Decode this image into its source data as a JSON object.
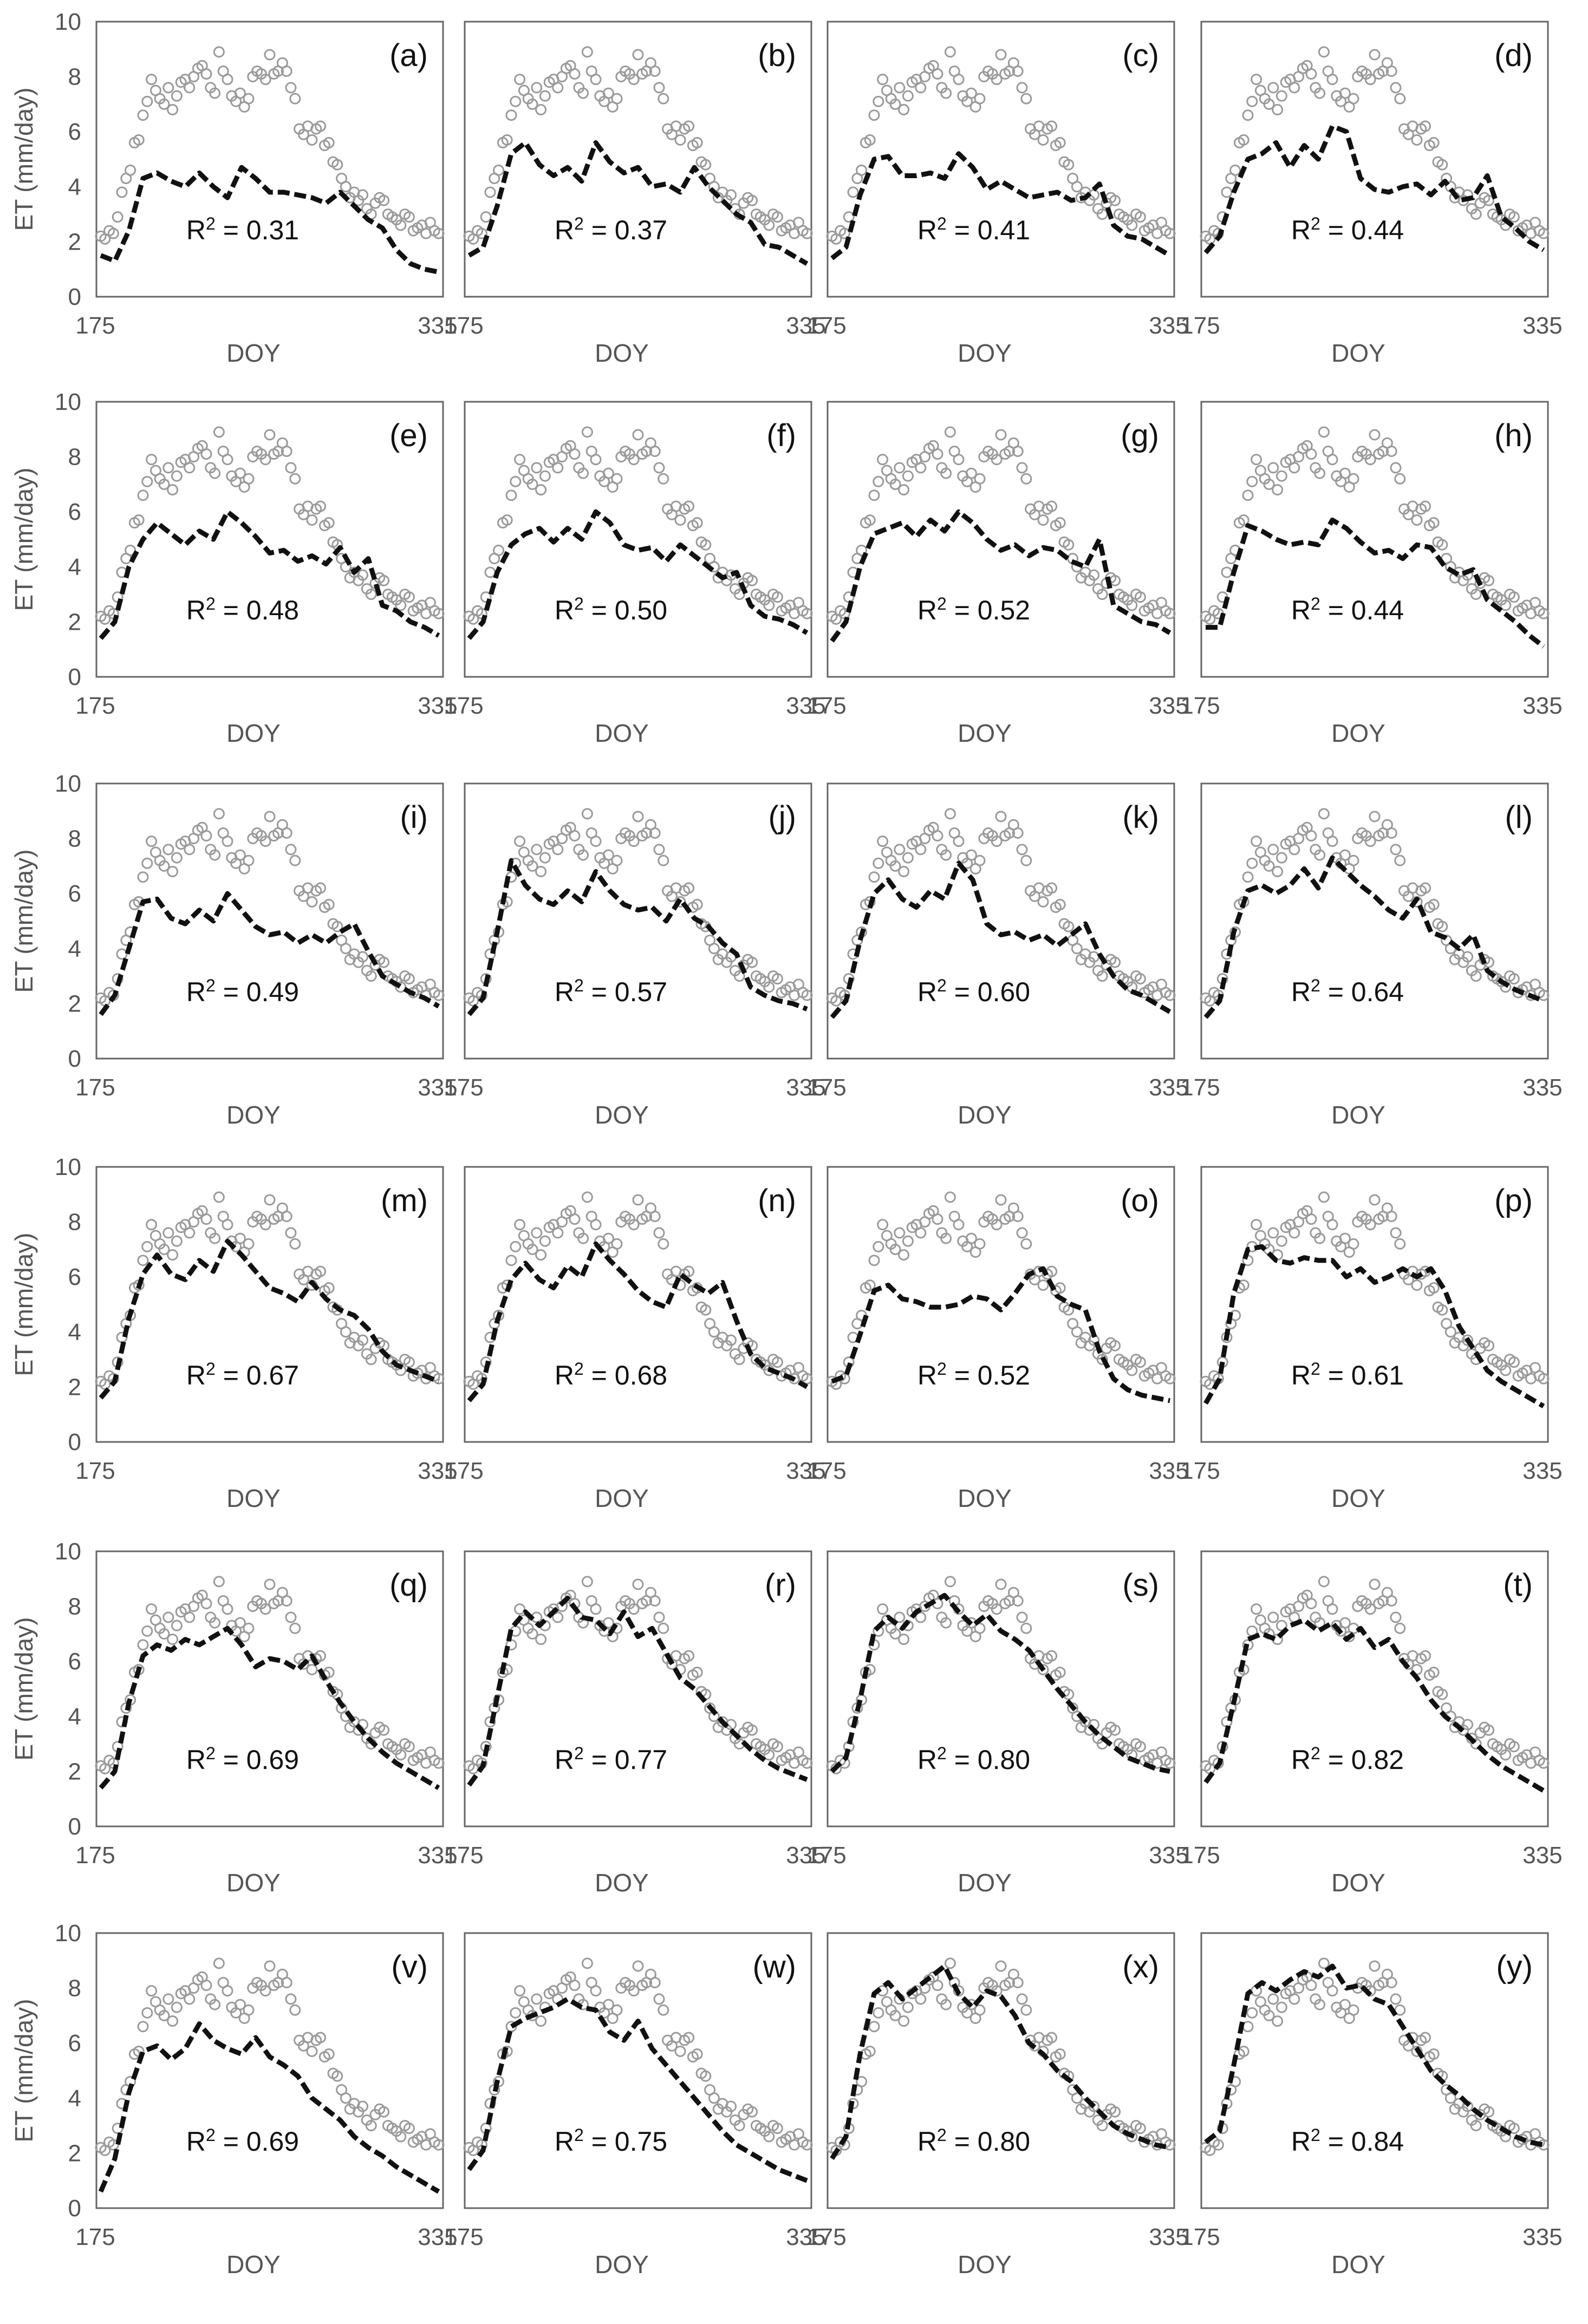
{
  "chart_data": {
    "type": "scatter",
    "description_free": true,
    "shared": {
      "xlabel": "DOY",
      "ylabel": "ET (mm/day)",
      "x_range": [
        175,
        335
      ],
      "y_range": [
        0,
        10
      ],
      "y_ticks": [
        0,
        2,
        4,
        6,
        8,
        10
      ],
      "x_tick_labels": [
        "175",
        "335"
      ],
      "r2_prefix": "R",
      "r2_exponent": "2",
      "colors": {
        "simulated": "#111111",
        "observed": "#9a9a9a",
        "frame": "#666666"
      }
    },
    "observed": {
      "name": "Observed ET (circles)",
      "doy": [
        175,
        177,
        179,
        181,
        183,
        185,
        187,
        189,
        191,
        193,
        195,
        197,
        199,
        201,
        203,
        205,
        207,
        209,
        211,
        213,
        215,
        217,
        219,
        221,
        223,
        225,
        227,
        229,
        231,
        233,
        235,
        237,
        239,
        241,
        243,
        245,
        247,
        249,
        251,
        253,
        255,
        257,
        259,
        261,
        263,
        265,
        267,
        269,
        271,
        273,
        275,
        277,
        279,
        281,
        283,
        285,
        287,
        289,
        291,
        293,
        295,
        297,
        299,
        301,
        303,
        305,
        307,
        309,
        311,
        313,
        315,
        317,
        319,
        321,
        323,
        325,
        327,
        329,
        331,
        333,
        335
      ],
      "et": [
        2.2,
        2.1,
        2.4,
        2.3,
        2.9,
        3.8,
        4.3,
        4.6,
        5.6,
        5.7,
        6.6,
        7.1,
        7.9,
        7.5,
        7.2,
        7.0,
        7.6,
        6.8,
        7.3,
        7.8,
        7.9,
        7.6,
        8.0,
        8.3,
        8.4,
        8.1,
        7.6,
        7.4,
        8.9,
        8.2,
        7.9,
        7.3,
        7.1,
        7.4,
        6.9,
        7.2,
        8.0,
        8.2,
        8.1,
        7.9,
        8.8,
        8.1,
        8.2,
        8.5,
        8.2,
        7.6,
        7.2,
        6.1,
        5.9,
        6.2,
        5.7,
        6.1,
        6.2,
        5.5,
        5.6,
        4.9,
        4.8,
        4.3,
        4.0,
        3.6,
        3.8,
        3.5,
        3.7,
        3.2,
        3.0,
        3.4,
        3.6,
        3.5,
        3.0,
        2.9,
        2.8,
        2.6,
        3.0,
        2.9,
        2.4,
        2.5,
        2.6,
        2.3,
        2.7,
        2.4,
        2.3
      ]
    },
    "panels": [
      {
        "id": "a",
        "label": "(a)",
        "r2": "0.31",
        "sim": [
          1.5,
          1.3,
          2.4,
          4.3,
          4.5,
          4.2,
          4.0,
          4.5,
          4.0,
          3.6,
          4.7,
          4.3,
          3.8,
          3.8,
          3.7,
          3.6,
          3.4,
          3.8,
          3.3,
          2.8,
          2.5,
          1.7,
          1.2,
          1.0,
          0.9
        ]
      },
      {
        "id": "b",
        "label": "(b)",
        "r2": "0.37",
        "sim": [
          1.5,
          1.8,
          3.3,
          5.2,
          5.6,
          4.8,
          4.4,
          4.7,
          4.2,
          5.6,
          4.9,
          4.5,
          4.7,
          4.0,
          4.1,
          3.8,
          4.7,
          4.0,
          3.5,
          3.0,
          2.7,
          1.9,
          1.8,
          1.5,
          1.2
        ]
      },
      {
        "id": "c",
        "label": "(c)",
        "r2": "0.41",
        "sim": [
          1.4,
          1.8,
          3.7,
          5.0,
          5.1,
          4.4,
          4.4,
          4.5,
          4.3,
          5.2,
          4.7,
          3.9,
          4.2,
          3.9,
          3.6,
          3.7,
          3.8,
          3.5,
          3.6,
          4.1,
          2.6,
          2.2,
          2.1,
          1.8,
          1.5
        ]
      },
      {
        "id": "d",
        "label": "(d)",
        "r2": "0.44",
        "sim": [
          1.6,
          2.2,
          3.8,
          5.0,
          5.2,
          5.6,
          4.7,
          5.5,
          5.0,
          6.2,
          6.0,
          4.3,
          3.9,
          3.8,
          4.0,
          4.1,
          3.7,
          4.2,
          3.5,
          3.6,
          4.4,
          2.9,
          2.5,
          2.0,
          1.7
        ]
      },
      {
        "id": "e",
        "label": "(e)",
        "r2": "0.48",
        "sim": [
          1.4,
          2.0,
          4.0,
          5.0,
          5.6,
          5.2,
          4.8,
          5.3,
          5.0,
          6.0,
          5.6,
          5.1,
          4.5,
          4.6,
          4.2,
          4.4,
          4.1,
          4.7,
          3.8,
          4.3,
          2.6,
          2.4,
          2.0,
          1.8,
          1.5
        ]
      },
      {
        "id": "f",
        "label": "(f)",
        "r2": "0.50",
        "sim": [
          1.4,
          2.0,
          3.8,
          4.8,
          5.2,
          5.4,
          4.9,
          5.4,
          5.0,
          6.0,
          5.6,
          4.8,
          4.6,
          4.7,
          4.2,
          4.8,
          4.4,
          4.0,
          3.6,
          3.8,
          2.6,
          2.2,
          2.1,
          1.9,
          1.6
        ]
      },
      {
        "id": "g",
        "label": "(g)",
        "r2": "0.52",
        "sim": [
          1.3,
          2.0,
          4.0,
          5.2,
          5.4,
          5.6,
          5.1,
          5.7,
          5.3,
          6.0,
          5.6,
          5.0,
          4.6,
          4.8,
          4.4,
          4.7,
          4.6,
          4.2,
          4.0,
          5.0,
          2.6,
          2.3,
          2.0,
          1.9,
          1.6
        ]
      },
      {
        "id": "h",
        "label": "(h)",
        "r2": "0.44",
        "sim": [
          1.8,
          1.8,
          3.8,
          5.5,
          5.3,
          5.0,
          4.8,
          4.9,
          4.8,
          5.7,
          5.4,
          4.9,
          4.5,
          4.6,
          4.3,
          4.8,
          4.7,
          4.0,
          3.7,
          3.9,
          2.8,
          2.4,
          2.0,
          1.5,
          1.1
        ]
      },
      {
        "id": "i",
        "label": "(i)",
        "r2": "0.49",
        "sim": [
          1.6,
          2.3,
          4.0,
          5.7,
          5.8,
          5.1,
          4.9,
          5.4,
          5.0,
          6.0,
          5.4,
          4.8,
          4.5,
          4.6,
          4.2,
          4.5,
          4.2,
          4.6,
          4.9,
          3.9,
          3.0,
          2.7,
          2.4,
          2.2,
          1.9
        ]
      },
      {
        "id": "j",
        "label": "(j)",
        "r2": "0.57",
        "sim": [
          1.6,
          2.2,
          4.6,
          7.2,
          6.3,
          5.8,
          5.6,
          6.1,
          5.7,
          6.8,
          6.1,
          5.6,
          5.4,
          5.5,
          5.0,
          5.8,
          5.1,
          4.8,
          4.2,
          3.8,
          2.6,
          2.3,
          2.1,
          2.0,
          1.8
        ]
      },
      {
        "id": "k",
        "label": "(k)",
        "r2": "0.60",
        "sim": [
          1.5,
          2.1,
          4.3,
          6.0,
          6.5,
          5.8,
          5.5,
          6.1,
          5.8,
          7.1,
          6.5,
          4.9,
          4.5,
          4.6,
          4.3,
          4.5,
          4.1,
          4.5,
          4.9,
          3.8,
          3.0,
          2.5,
          2.3,
          2.0,
          1.7
        ]
      },
      {
        "id": "l",
        "label": "(l)",
        "r2": "0.64",
        "sim": [
          1.5,
          2.1,
          4.6,
          6.1,
          6.3,
          6.0,
          6.3,
          6.9,
          6.2,
          7.3,
          6.8,
          6.3,
          5.9,
          5.4,
          5.1,
          5.8,
          4.6,
          4.4,
          4.0,
          4.5,
          3.2,
          2.8,
          2.5,
          2.3,
          2.1
        ]
      },
      {
        "id": "m",
        "label": "(m)",
        "r2": "0.67",
        "sim": [
          1.6,
          2.2,
          4.5,
          6.1,
          6.8,
          6.1,
          5.9,
          6.6,
          6.2,
          7.3,
          6.8,
          6.2,
          5.6,
          5.4,
          5.1,
          5.8,
          5.2,
          4.8,
          4.6,
          4.1,
          3.3,
          2.8,
          2.6,
          2.4,
          2.2
        ]
      },
      {
        "id": "n",
        "label": "(n)",
        "r2": "0.68",
        "sim": [
          1.5,
          2.1,
          4.4,
          5.9,
          6.5,
          5.9,
          5.6,
          6.4,
          6.0,
          7.2,
          6.6,
          6.1,
          5.5,
          5.1,
          4.9,
          6.1,
          5.7,
          5.4,
          5.8,
          4.4,
          3.2,
          2.7,
          2.5,
          2.3,
          2.0
        ]
      },
      {
        "id": "o",
        "label": "(o)",
        "r2": "0.52",
        "sim": [
          2.2,
          2.4,
          3.9,
          5.5,
          5.7,
          5.2,
          5.1,
          4.9,
          4.9,
          5.0,
          5.3,
          5.2,
          4.8,
          5.4,
          6.1,
          6.3,
          5.3,
          5.0,
          4.8,
          3.3,
          2.3,
          1.9,
          1.7,
          1.6,
          1.5
        ]
      },
      {
        "id": "p",
        "label": "(p)",
        "r2": "0.61",
        "sim": [
          1.4,
          2.3,
          5.4,
          7.0,
          7.1,
          6.6,
          6.5,
          6.7,
          6.6,
          6.6,
          6.0,
          6.3,
          5.8,
          6.0,
          6.3,
          6.0,
          6.3,
          5.5,
          4.2,
          3.4,
          2.6,
          2.2,
          1.9,
          1.6,
          1.3
        ]
      },
      {
        "id": "q",
        "label": "(q)",
        "r2": "0.69",
        "sim": [
          1.4,
          2.0,
          4.5,
          6.2,
          6.6,
          6.4,
          6.8,
          6.6,
          6.9,
          7.2,
          6.6,
          5.8,
          6.1,
          6.0,
          5.7,
          6.2,
          5.3,
          4.5,
          3.8,
          3.2,
          2.7,
          2.3,
          2.0,
          1.7,
          1.4
        ]
      },
      {
        "id": "r",
        "label": "(r)",
        "r2": "0.77",
        "sim": [
          1.5,
          2.2,
          4.7,
          7.2,
          7.8,
          7.3,
          7.8,
          8.3,
          7.6,
          7.5,
          7.0,
          7.8,
          6.9,
          7.2,
          6.3,
          5.4,
          5.0,
          4.4,
          3.8,
          3.3,
          2.8,
          2.4,
          2.1,
          1.9,
          1.7
        ]
      },
      {
        "id": "s",
        "label": "(s)",
        "r2": "0.80",
        "sim": [
          2.0,
          2.5,
          4.6,
          7.1,
          7.6,
          7.2,
          7.8,
          8.1,
          8.4,
          7.8,
          7.3,
          7.7,
          7.1,
          6.8,
          6.4,
          5.7,
          5.0,
          4.4,
          3.8,
          3.3,
          2.9,
          2.5,
          2.3,
          2.1,
          2.0
        ]
      },
      {
        "id": "t",
        "label": "(t)",
        "r2": "0.82",
        "sim": [
          1.6,
          2.3,
          4.5,
          6.8,
          7.0,
          6.8,
          7.3,
          7.5,
          7.1,
          7.4,
          6.8,
          7.2,
          6.5,
          6.8,
          6.0,
          5.4,
          4.6,
          4.0,
          3.6,
          3.1,
          2.6,
          2.2,
          1.9,
          1.6,
          1.3
        ]
      },
      {
        "id": "v",
        "label": "(v)",
        "r2": "0.69",
        "sim": [
          0.6,
          1.8,
          4.2,
          5.7,
          5.9,
          5.4,
          5.8,
          6.7,
          6.1,
          5.8,
          5.6,
          6.2,
          5.5,
          5.2,
          4.8,
          4.0,
          3.6,
          3.2,
          2.6,
          2.2,
          1.9,
          1.5,
          1.2,
          0.9,
          0.6
        ]
      },
      {
        "id": "w",
        "label": "(w)",
        "r2": "0.75",
        "sim": [
          1.4,
          2.1,
          4.6,
          6.6,
          6.9,
          7.1,
          7.3,
          7.6,
          7.3,
          7.2,
          6.4,
          6.1,
          6.8,
          5.8,
          5.2,
          4.6,
          4.0,
          3.4,
          2.8,
          2.3,
          2.0,
          1.7,
          1.4,
          1.2,
          1.0
        ]
      },
      {
        "id": "x",
        "label": "(x)",
        "r2": "0.80",
        "sim": [
          1.8,
          2.6,
          5.6,
          7.8,
          8.2,
          7.6,
          8.0,
          8.4,
          8.8,
          7.8,
          7.3,
          7.9,
          7.7,
          7.0,
          6.0,
          5.6,
          5.0,
          4.6,
          4.0,
          3.5,
          3.0,
          2.7,
          2.5,
          2.3,
          2.2
        ]
      },
      {
        "id": "y",
        "label": "(y)",
        "r2": "0.84",
        "sim": [
          2.4,
          2.8,
          5.2,
          7.8,
          8.2,
          7.9,
          8.3,
          8.6,
          8.4,
          8.8,
          8.0,
          8.1,
          7.6,
          7.4,
          6.6,
          5.8,
          5.0,
          4.5,
          4.1,
          3.6,
          3.2,
          2.9,
          2.6,
          2.4,
          2.3
        ]
      }
    ]
  }
}
